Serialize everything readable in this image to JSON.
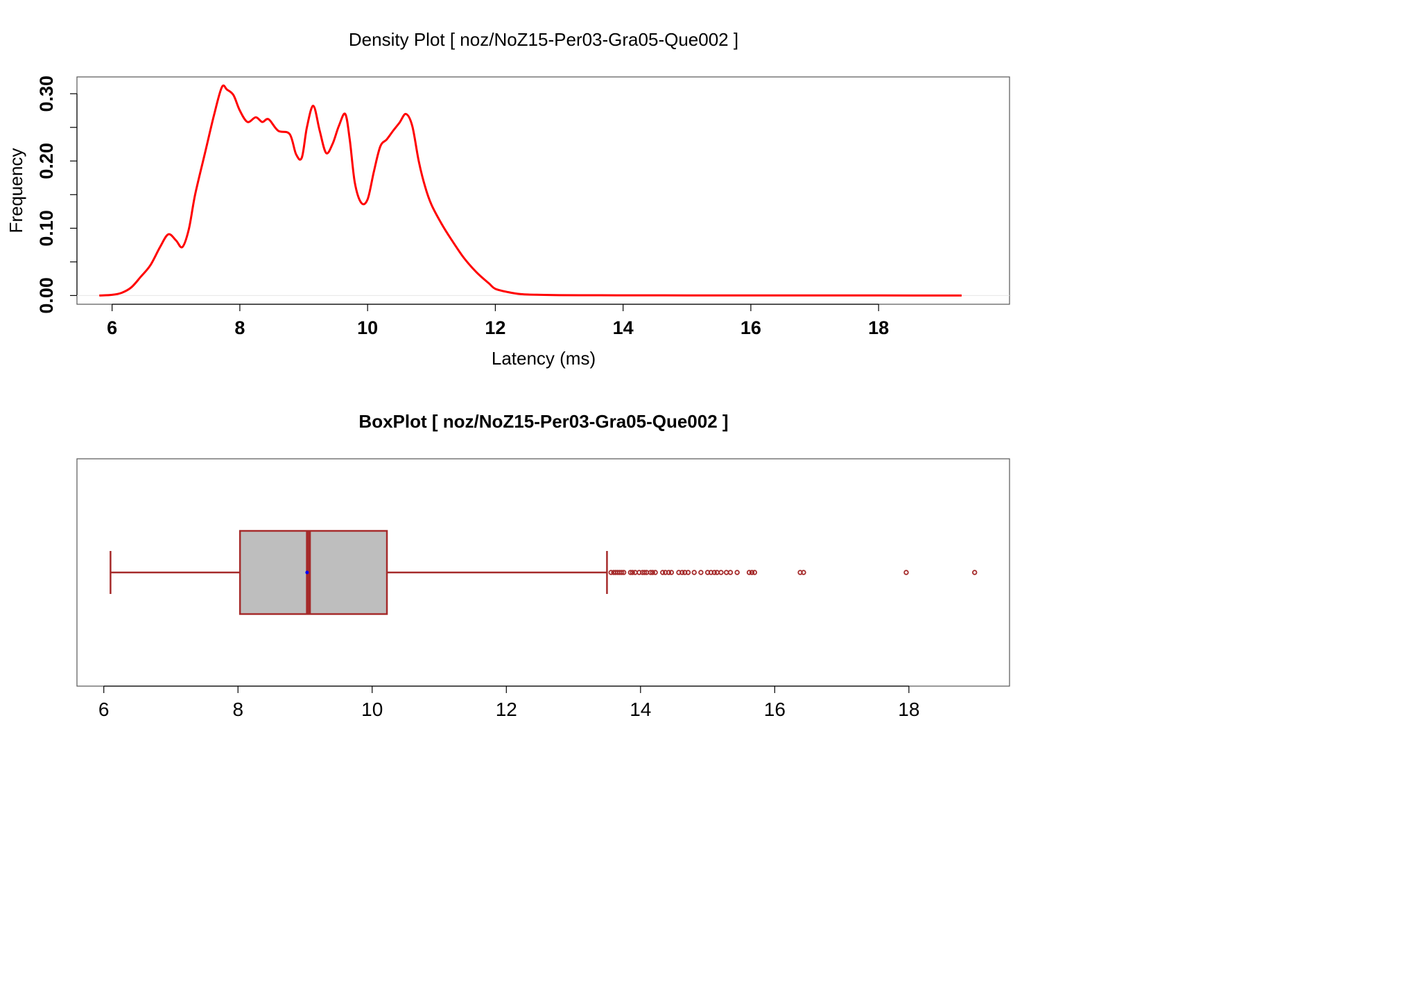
{
  "chart_data": [
    {
      "type": "line",
      "title": "Density Plot [ noz/NoZ15-Per03-Gra05-Que002 ]",
      "xlabel": "Latency (ms)",
      "ylabel": "Frequency",
      "xlim": [
        5.45,
        20.05
      ],
      "ylim": [
        -0.013,
        0.325
      ],
      "xticks": [
        6,
        8,
        10,
        12,
        14,
        16,
        18
      ],
      "xtick_labels": [
        "6",
        "8",
        "10",
        "12",
        "14",
        "16",
        "18"
      ],
      "yticks": [
        0,
        0.05,
        0.1,
        0.15,
        0.2,
        0.25,
        0.3
      ],
      "ytick_labels": [
        "0.00",
        "",
        "0.10",
        "",
        "0.20",
        "",
        "0.30"
      ],
      "grid": false,
      "line_color": "#ff0000",
      "series": [
        {
          "x": [
            5.8,
            6.0,
            6.15,
            6.3,
            6.45,
            6.6,
            6.75,
            6.88,
            7.0,
            7.1,
            7.2,
            7.3,
            7.45,
            7.6,
            7.72,
            7.8,
            7.9,
            8.0,
            8.12,
            8.25,
            8.35,
            8.45,
            8.6,
            8.78,
            8.88,
            8.97,
            9.05,
            9.15,
            9.25,
            9.35,
            9.45,
            9.55,
            9.65,
            9.72,
            9.8,
            9.9,
            10.0,
            10.1,
            10.2,
            10.3,
            10.4,
            10.5,
            10.6,
            10.7,
            10.8,
            10.9,
            11.0,
            11.15,
            11.3,
            11.5,
            11.7,
            11.9,
            12.0,
            12.2,
            12.4,
            12.7,
            13.0,
            13.5,
            14.0,
            15.0,
            16.0,
            17.0,
            18.0,
            19.3
          ],
          "y": [
            0.0,
            0.001,
            0.004,
            0.012,
            0.028,
            0.045,
            0.072,
            0.091,
            0.082,
            0.072,
            0.098,
            0.15,
            0.21,
            0.27,
            0.31,
            0.306,
            0.298,
            0.275,
            0.258,
            0.265,
            0.258,
            0.262,
            0.245,
            0.24,
            0.21,
            0.205,
            0.25,
            0.282,
            0.245,
            0.212,
            0.225,
            0.252,
            0.27,
            0.232,
            0.168,
            0.138,
            0.143,
            0.185,
            0.222,
            0.232,
            0.245,
            0.257,
            0.27,
            0.252,
            0.2,
            0.162,
            0.135,
            0.108,
            0.085,
            0.057,
            0.035,
            0.018,
            0.01,
            0.005,
            0.002,
            0.001,
            0.0005,
            0.0004,
            0.0003,
            0.0002,
            0.0002,
            0.0001,
            0.0001,
            0.0
          ]
        }
      ]
    },
    {
      "type": "box",
      "title": "BoxPlot [ noz/NoZ15-Per03-Gra05-Que002 ]",
      "xlim": [
        5.6,
        19.5
      ],
      "xticks": [
        6,
        8,
        10,
        12,
        14,
        16,
        18
      ],
      "xtick_labels": [
        "6",
        "8",
        "10",
        "12",
        "14",
        "16",
        "18"
      ],
      "orientation": "horizontal",
      "box_fill": "#bebebe",
      "box_stroke": "#a52a2a",
      "mean_color": "#0000ff",
      "whisker_low": 6.1,
      "q1": 8.03,
      "median": 9.05,
      "mean": 9.03,
      "q3": 10.22,
      "whisker_high": 13.5,
      "outliers": [
        13.56,
        13.6,
        13.63,
        13.66,
        13.69,
        13.72,
        13.75,
        13.85,
        13.88,
        13.92,
        13.98,
        14.03,
        14.06,
        14.09,
        14.15,
        14.18,
        14.22,
        14.33,
        14.37,
        14.42,
        14.46,
        14.57,
        14.62,
        14.66,
        14.71,
        14.8,
        14.9,
        15.0,
        15.05,
        15.1,
        15.14,
        15.2,
        15.28,
        15.34,
        15.44,
        15.62,
        15.66,
        15.7,
        16.38,
        16.43,
        17.96,
        18.98
      ]
    }
  ]
}
